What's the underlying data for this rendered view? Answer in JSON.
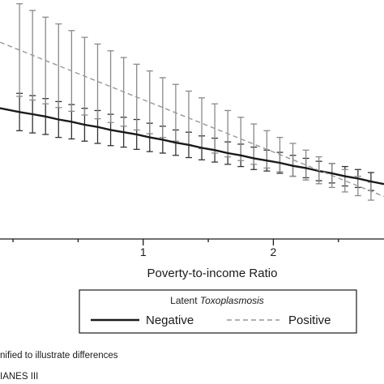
{
  "chart_data": {
    "type": "line",
    "xlabel": "Poverty-to-income Ratio",
    "x_ticks": [
      1,
      2
    ],
    "series": [
      {
        "name": "Negative",
        "color": "#1a1a1a",
        "style": "solid",
        "x": [
          0.05,
          0.15,
          0.25,
          0.35,
          0.45,
          0.55,
          0.65,
          0.75,
          0.85,
          0.95,
          1.05,
          1.15,
          1.25,
          1.35,
          1.45,
          1.55,
          1.65,
          1.75,
          1.85,
          1.95,
          2.05,
          2.15,
          2.25,
          2.35,
          2.45,
          2.55,
          2.65,
          2.75
        ],
        "y": [
          0.67,
          0.667,
          0.664,
          0.66,
          0.657,
          0.653,
          0.65,
          0.646,
          0.643,
          0.64,
          0.636,
          0.633,
          0.629,
          0.626,
          0.622,
          0.619,
          0.615,
          0.612,
          0.608,
          0.605,
          0.602,
          0.598,
          0.595,
          0.591,
          0.588,
          0.584,
          0.581,
          0.577
        ],
        "err": [
          0.025,
          0.025,
          0.024,
          0.024,
          0.023,
          0.022,
          0.022,
          0.021,
          0.02,
          0.02,
          0.019,
          0.018,
          0.017,
          0.017,
          0.016,
          0.016,
          0.015,
          0.015,
          0.015,
          0.014,
          0.014,
          0.014,
          0.013,
          0.013,
          0.013,
          0.013,
          0.012,
          0.012
        ]
      },
      {
        "name": "Positive",
        "color": "#999999",
        "style": "dashed",
        "x": [
          0.05,
          0.15,
          0.25,
          0.35,
          0.45,
          0.55,
          0.65,
          0.75,
          0.85,
          0.95,
          1.05,
          1.15,
          1.25,
          1.35,
          1.45,
          1.55,
          1.65,
          1.75,
          1.85,
          1.95,
          2.05,
          2.15,
          2.25,
          2.35,
          2.45,
          2.55,
          2.65,
          2.75
        ],
        "y": [
          0.753,
          0.746,
          0.739,
          0.732,
          0.725,
          0.718,
          0.711,
          0.704,
          0.697,
          0.69,
          0.683,
          0.676,
          0.669,
          0.662,
          0.655,
          0.648,
          0.641,
          0.634,
          0.627,
          0.62,
          0.613,
          0.606,
          0.599,
          0.592,
          0.585,
          0.578,
          0.571,
          0.564
        ],
        "err": [
          0.062,
          0.06,
          0.058,
          0.056,
          0.054,
          0.052,
          0.05,
          0.048,
          0.046,
          0.044,
          0.042,
          0.04,
          0.038,
          0.036,
          0.034,
          0.033,
          0.031,
          0.029,
          0.027,
          0.025,
          0.023,
          0.022,
          0.02,
          0.018,
          0.016,
          0.015,
          0.013,
          0.012
        ]
      }
    ],
    "legend": {
      "title_prefix": "Latent ",
      "title_italic": "Toxoplasmosis",
      "entries": [
        "Negative",
        "Positive"
      ],
      "position": "bottom"
    },
    "xlim": [
      -0.1,
      2.85
    ],
    "ylim": [
      0.5,
      0.82
    ],
    "grid": false
  },
  "footnotes": [
    "nified to illustrate differences",
    "IANES III"
  ]
}
